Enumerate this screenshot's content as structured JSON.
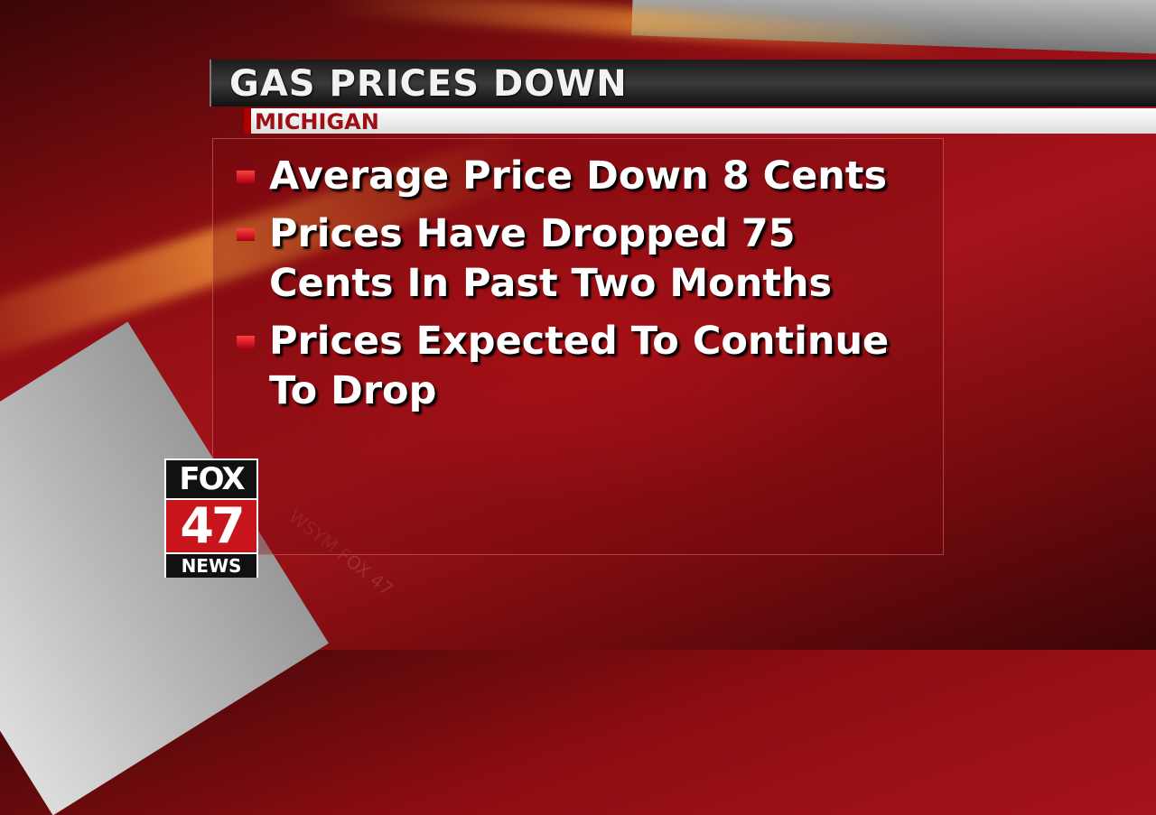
{
  "header": {
    "title": "GAS PRICES DOWN",
    "subtitle": "MICHIGAN"
  },
  "bullets": [
    "Average Price Down 8 Cents",
    "Prices Have Dropped 75 Cents In Past Two Months",
    "Prices Expected To Continue To Drop"
  ],
  "logo": {
    "line1": "FOX",
    "line2": "47",
    "line3": "NEWS"
  },
  "watermark": "WSYM FOX 47"
}
